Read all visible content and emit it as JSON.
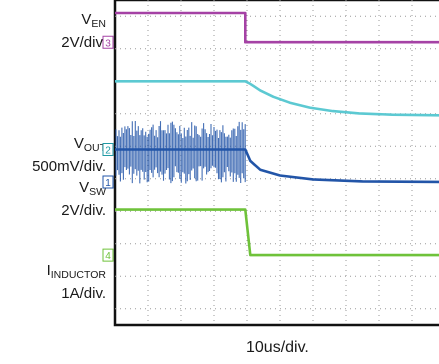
{
  "chart_data": {
    "type": "line",
    "xlabel": "10us/div.",
    "series": [
      {
        "id": "ven",
        "name_main": "V",
        "name_sub": "EN",
        "scale": "2V/div.",
        "color": "#a542a5",
        "marker": "3",
        "values": [
          [
            0,
            3.1
          ],
          [
            3.95,
            3.1
          ],
          [
            3.95,
            2.2
          ],
          [
            10,
            2.2
          ]
        ]
      },
      {
        "id": "vout",
        "color": "#5cc9d2",
        "marker": "",
        "values": [
          [
            0,
            1.0
          ],
          [
            3.95,
            1.0
          ],
          [
            4.1,
            0.92
          ],
          [
            4.4,
            0.72
          ],
          [
            4.8,
            0.52
          ],
          [
            5.3,
            0.34
          ],
          [
            5.9,
            0.19
          ],
          [
            6.6,
            0.08
          ],
          [
            7.4,
            0.01
          ],
          [
            8.4,
            -0.03
          ],
          [
            10,
            -0.05
          ]
        ]
      },
      {
        "id": "vsw",
        "name_main": "V",
        "name_sub": "SW",
        "scale": "2V/div.",
        "color": "#2255a8",
        "marker": "1",
        "values": [
          [
            0,
            -1.1
          ],
          [
            3.95,
            -1.1
          ],
          [
            4.1,
            -1.45
          ],
          [
            4.4,
            -1.72
          ],
          [
            5.0,
            -1.9
          ],
          [
            6.0,
            -2.02
          ],
          [
            7.5,
            -2.08
          ],
          [
            10,
            -2.1
          ]
        ]
      },
      {
        "id": "iind",
        "name_main": "I",
        "name_sub": "INDUCTOR",
        "scale": "1A/div.",
        "color": "#6fc23a",
        "marker": "4",
        "values": [
          [
            0,
            -2.95
          ],
          [
            3.95,
            -2.95
          ],
          [
            4.1,
            -4.35
          ],
          [
            10,
            -4.35
          ]
        ]
      }
    ],
    "vout_label": {
      "name_main": "V",
      "name_sub": "OUT",
      "scale": "500mV/div.",
      "marker": "2"
    },
    "xlim": [
      0,
      10
    ],
    "ylim": [
      -6.5,
      3.5
    ],
    "grid": true
  }
}
